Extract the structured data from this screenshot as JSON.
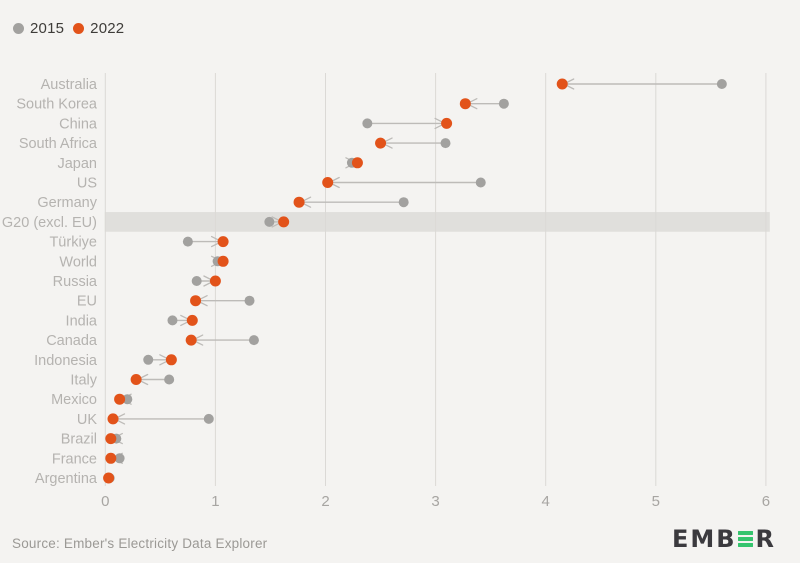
{
  "legend": {
    "items": [
      {
        "label": "2015",
        "color": "#a2a19f"
      },
      {
        "label": "2022",
        "color": "#e2531a"
      }
    ]
  },
  "chart_data": {
    "type": "dumbbell",
    "orientation": "horizontal",
    "categories": [
      "Australia",
      "South Korea",
      "China",
      "South Africa",
      "Japan",
      "US",
      "Germany",
      "G20 (excl. EU)",
      "Türkiye",
      "World",
      "Russia",
      "EU",
      "India",
      "Canada",
      "Indonesia",
      "Italy",
      "Mexico",
      "UK",
      "Brazil",
      "France",
      "Argentina"
    ],
    "series": [
      {
        "name": "2015",
        "color": "#a2a19f",
        "values": [
          5.6,
          3.62,
          2.38,
          3.09,
          2.24,
          3.41,
          2.71,
          1.49,
          0.75,
          1.02,
          0.83,
          1.31,
          0.61,
          1.35,
          0.39,
          0.58,
          0.2,
          0.94,
          0.1,
          0.13,
          0.04
        ]
      },
      {
        "name": "2022",
        "color": "#e2531a",
        "values": [
          4.15,
          3.27,
          3.1,
          2.5,
          2.29,
          2.02,
          1.76,
          1.62,
          1.07,
          1.07,
          1.0,
          0.82,
          0.79,
          0.78,
          0.6,
          0.28,
          0.13,
          0.07,
          0.05,
          0.05,
          0.03
        ]
      }
    ],
    "xlim": [
      0,
      6
    ],
    "xticks": [
      0,
      1,
      2,
      3,
      4,
      5,
      6
    ],
    "grid": "vertical",
    "legend_position": "top-left",
    "highlight_category": "G20 (excl. EU)",
    "arrow_direction": "from 2015 to 2022"
  },
  "colors": {
    "background": "#f4f3f1",
    "band": "#e0dfdc",
    "grid": "#dbd9d6",
    "connector": "#bdbbb8",
    "dot_2015": "#a2a19f",
    "dot_2022": "#e2531a",
    "category_label": "#b5b3b0",
    "tick_label": "#a7a5a2",
    "legend_text": "#3e3c39",
    "source_text": "#9b9995",
    "logo_dark": "#3b3a3e",
    "logo_green": "#35c46e"
  },
  "footer": {
    "source": "Source: Ember's Electricity Data Explorer",
    "logo": {
      "letters_before": "EMB",
      "green_letter": "E",
      "letters_after": "R",
      "brand": "EMBER"
    }
  }
}
